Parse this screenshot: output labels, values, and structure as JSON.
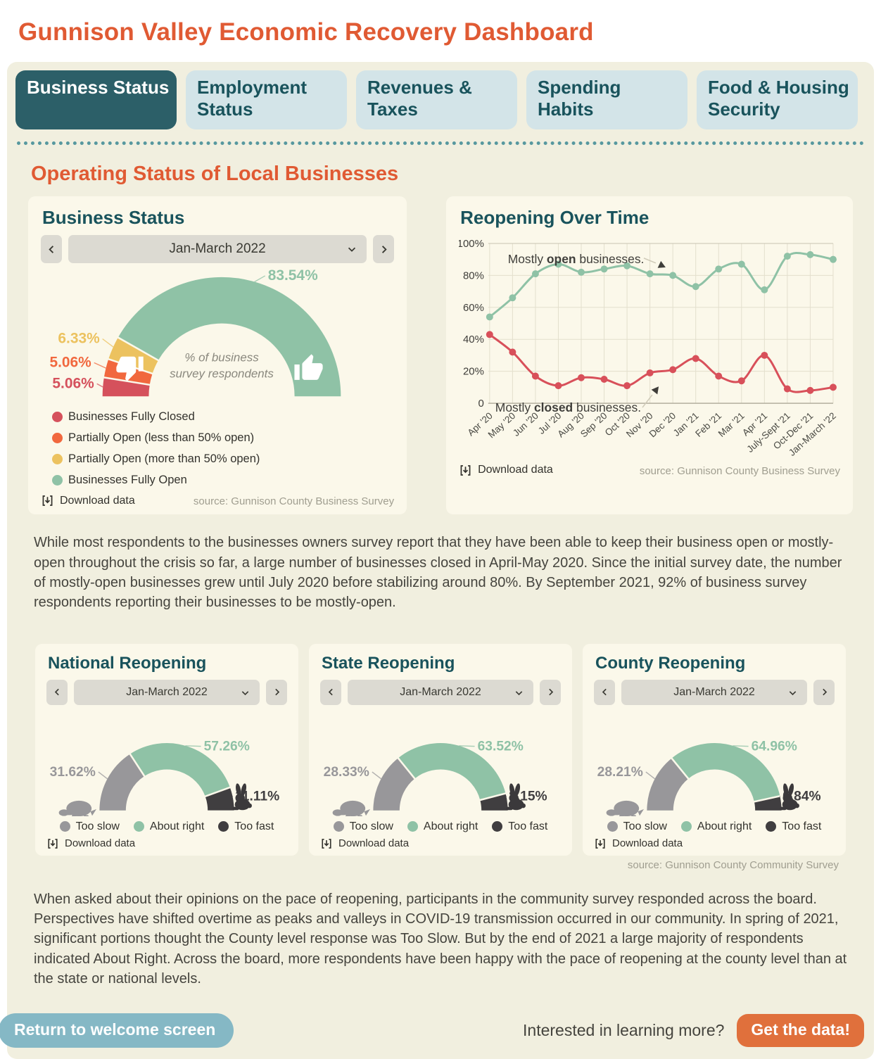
{
  "header": {
    "title": "Gunnison Valley Economic Recovery Dashboard"
  },
  "tabs": [
    {
      "label": "Business Status",
      "active": true
    },
    {
      "label": "Employment Status",
      "active": false
    },
    {
      "label": "Revenues & Taxes",
      "active": false
    },
    {
      "label": "Spending Habits",
      "active": false
    },
    {
      "label": "Food & Housing Security",
      "active": false
    }
  ],
  "section": {
    "title": "Operating Status of Local Businesses"
  },
  "cards": {
    "business": {
      "title": "Business Status",
      "period": "Jan-March 2022",
      "download": "Download data",
      "source": "source: Gunnison County Business Survey"
    },
    "reopening": {
      "title": "Reopening Over Time",
      "download": "Download data",
      "source": "source: Gunnison County Business Survey"
    },
    "national": {
      "title": "National Reopening",
      "period": "Jan-March 2022",
      "download": "Download data"
    },
    "state": {
      "title": "State Reopening",
      "period": "Jan-March 2022",
      "download": "Download data"
    },
    "county": {
      "title": "County Reopening",
      "period": "Jan-March 2022",
      "download": "Download data",
      "source": "source: Gunnison County Community Survey"
    }
  },
  "paragraphs": {
    "business_summary": "While most respondents to the businesses owners survey report that they have been able to keep their business open or mostly-open throughout the crisis so far, a large number of businesses closed in April-May 2020. Since the initial survey date, the number of mostly-open businesses grew until July 2020 before stabilizing around 80%. By September 2021, 92% of business survey respondents reporting their businesses to be mostly-open.",
    "reopening_summary": "When asked about their opinions on the pace of reopening, participants in the community survey responded across the board. Perspectives have shifted overtime as peaks and valleys in COVID-19 transmission occurred in our community. In spring of 2021, significant portions thought the County level response was Too Slow. But by the end of 2021 a large majority of respondents indicated About Right. Across the board, more respondents have been happy with the pace of reopening at the county level than at the state or national levels."
  },
  "footer": {
    "return_label": "Return to welcome screen",
    "learn_more": "Interested in learning more?",
    "get_data": "Get the data!"
  },
  "colors": {
    "accent_orange": "#e05a33",
    "teal_dark": "#19535c",
    "tab_active_bg": "#2c5f68",
    "tab_bg": "#d3e4e8",
    "panel_bg": "#f1efdf",
    "card_bg": "#fbf8ea",
    "button_blue": "#85b8c5",
    "button_orange": "#e0703c"
  },
  "chart_data": [
    {
      "type": "gauge",
      "size": "big",
      "title": "Business Status",
      "period": "Jan-March 2022",
      "unit": "%",
      "center_label": [
        "% of business",
        "survey respondents"
      ],
      "segments": [
        {
          "label": "Businesses Fully Closed",
          "value": 5.06,
          "color": "#d5515c"
        },
        {
          "label": "Partially Open (less than 50% open)",
          "value": 5.06,
          "color": "#f1683e"
        },
        {
          "label": "Partially Open (more than 50% open)",
          "value": 6.33,
          "color": "#ecc25f"
        },
        {
          "label": "Businesses Fully Open",
          "value": 83.54,
          "color": "#8fc2a6"
        }
      ],
      "icons": [
        "thumb-down",
        "thumb-up"
      ]
    },
    {
      "type": "line",
      "title": "Reopening Over Time",
      "categories": [
        "Apr '20",
        "May '20",
        "Jun '20",
        "Jul '20",
        "Aug '20",
        "Sep '20",
        "Oct '20",
        "Nov '20",
        "Dec '20",
        "Jan '21",
        "Feb '21",
        "Mar '21",
        "Apr '21",
        "July-Sept '21",
        "Oct-Dec '21",
        "Jan-March '22"
      ],
      "series": [
        {
          "name": "Mostly open businesses.",
          "color": "#8fc2a6",
          "values": [
            54,
            66,
            81,
            87,
            82,
            84,
            86,
            81,
            80,
            73,
            84,
            87,
            71,
            92,
            93,
            90
          ]
        },
        {
          "name": "Mostly closed businesses.",
          "color": "#d8505a",
          "values": [
            43,
            32,
            17,
            11,
            16,
            15,
            11,
            19,
            21,
            28,
            17,
            14,
            30,
            9,
            8,
            10
          ]
        }
      ],
      "ylim": [
        0,
        100
      ],
      "grid": true,
      "legend_position": "annotations",
      "yticks": [
        {
          "v": 100,
          "t": "100%"
        },
        {
          "v": 80,
          "t": "80%"
        },
        {
          "v": 60,
          "t": "60%"
        },
        {
          "v": 40,
          "t": "40%"
        },
        {
          "v": 20,
          "t": "20%"
        },
        {
          "v": 0,
          "t": "0"
        }
      ],
      "annotations": [
        {
          "parts": [
            [
              "Mostly ",
              0
            ],
            [
              "open",
              1
            ],
            [
              " businesses.",
              0
            ]
          ],
          "x": 70,
          "y": 40,
          "line": [
            264,
            33,
            281,
            40
          ],
          "head": [
            286,
            42,
            25
          ]
        },
        {
          "parts": [
            [
              "Mostly ",
              0
            ],
            [
              "closed",
              1
            ],
            [
              " businesses.",
              0
            ]
          ],
          "x": 52,
          "y": 252,
          "line": [
            262,
            246,
            276,
            228
          ],
          "head": [
            279,
            224,
            -52
          ]
        }
      ]
    },
    {
      "type": "gauge",
      "size": "small",
      "title": "National Reopening",
      "period": "Jan-March 2022",
      "unit": "%",
      "segments": [
        {
          "label": "Too slow",
          "value": 31.62,
          "color": "#98979a"
        },
        {
          "label": "About right",
          "value": 57.26,
          "color": "#8fc2a6"
        },
        {
          "label": "Too fast",
          "value": 11.11,
          "color": "#403e40"
        }
      ],
      "icons": [
        "turtle",
        "rabbit"
      ]
    },
    {
      "type": "gauge",
      "size": "small",
      "title": "State Reopening",
      "period": "Jan-March 2022",
      "unit": "%",
      "segments": [
        {
          "label": "Too slow",
          "value": 28.33,
          "color": "#98979a"
        },
        {
          "label": "About right",
          "value": 63.52,
          "color": "#8fc2a6"
        },
        {
          "label": "Too fast",
          "value": 8.15,
          "color": "#403e40"
        }
      ],
      "icons": [
        "turtle",
        "rabbit"
      ]
    },
    {
      "type": "gauge",
      "size": "small",
      "title": "County Reopening",
      "period": "Jan-March 2022",
      "unit": "%",
      "segments": [
        {
          "label": "Too slow",
          "value": 28.21,
          "color": "#98979a"
        },
        {
          "label": "About right",
          "value": 64.96,
          "color": "#8fc2a6"
        },
        {
          "label": "Too fast",
          "value": 6.84,
          "color": "#403e40"
        }
      ],
      "icons": [
        "turtle",
        "rabbit"
      ]
    }
  ]
}
